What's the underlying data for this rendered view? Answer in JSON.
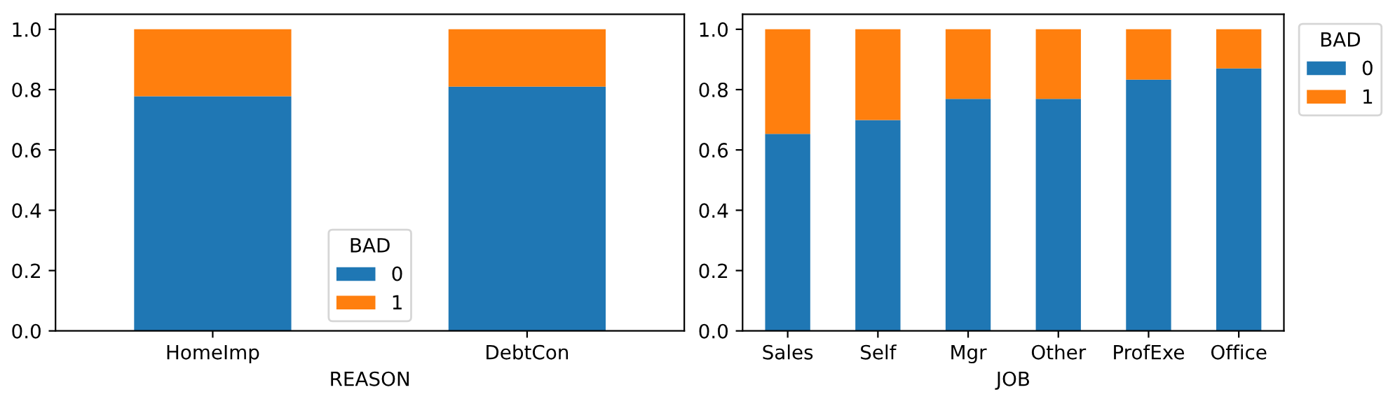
{
  "chart_data": [
    {
      "type": "bar",
      "stacked": true,
      "categories": [
        "HomeImp",
        "DebtCon"
      ],
      "xlabel": "REASON",
      "legend_title": "BAD",
      "legend": "bottom",
      "ylim": [
        0,
        1.05
      ],
      "yticks": [
        {
          "value": 0,
          "label": "0.0"
        },
        {
          "value": 0.2,
          "label": "0.2"
        },
        {
          "value": 0.4,
          "label": "0.4"
        },
        {
          "value": 0.6,
          "label": "0.6"
        },
        {
          "value": 0.8,
          "label": "0.8"
        },
        {
          "value": 1,
          "label": "1.0"
        }
      ],
      "series": [
        {
          "name": "0",
          "color": "#1f77b4",
          "values": [
            0.778,
            0.81
          ]
        },
        {
          "name": "1",
          "color": "#ff7f0e",
          "values": [
            0.222,
            0.19
          ]
        }
      ]
    },
    {
      "type": "bar",
      "stacked": true,
      "categories": [
        "Sales",
        "Self",
        "Mgr",
        "Other",
        "ProfExe",
        "Office"
      ],
      "xlabel": "JOB",
      "legend_title": "BAD",
      "legend": "right",
      "ylim": [
        0,
        1.05
      ],
      "yticks": [
        {
          "value": 0,
          "label": "0.0"
        },
        {
          "value": 0.2,
          "label": "0.2"
        },
        {
          "value": 0.4,
          "label": "0.4"
        },
        {
          "value": 0.6,
          "label": "0.6"
        },
        {
          "value": 0.8,
          "label": "0.8"
        },
        {
          "value": 1,
          "label": "1.0"
        }
      ],
      "series": [
        {
          "name": "0",
          "color": "#1f77b4",
          "values": [
            0.653,
            0.699,
            0.769,
            0.769,
            0.833,
            0.87
          ]
        },
        {
          "name": "1",
          "color": "#ff7f0e",
          "values": [
            0.347,
            0.301,
            0.231,
            0.231,
            0.167,
            0.13
          ]
        }
      ]
    }
  ]
}
